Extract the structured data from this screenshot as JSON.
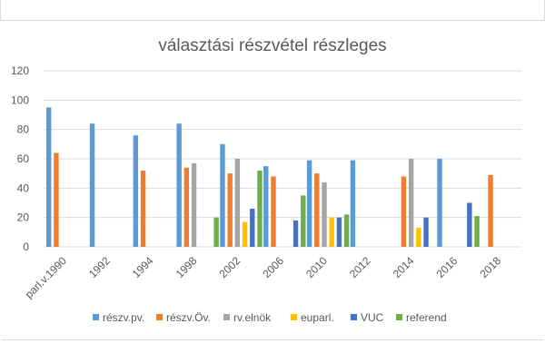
{
  "colors": {
    "grid": "#d9d9d9",
    "axis_text": "#595959",
    "title": "#595959"
  },
  "chart_data": {
    "type": "bar",
    "title": "választási részvétel részleges",
    "xlabel": "",
    "ylabel": "",
    "ylim": [
      0,
      120
    ],
    "yticks": [
      0,
      20,
      40,
      60,
      80,
      100,
      120
    ],
    "grid": true,
    "legend_position": "bottom",
    "categories": [
      "parl.v.1990",
      "1992",
      "1994",
      "1998",
      "2002",
      "2006",
      "2010",
      "2012",
      "2014",
      "2016",
      "2018"
    ],
    "series": [
      {
        "name": "részv.pv.",
        "color": "#5b9bd5",
        "values": [
          95,
          84,
          76,
          84,
          70,
          55,
          59,
          59,
          null,
          60,
          null
        ]
      },
      {
        "name": "részv.Öv.",
        "color": "#ed7d31",
        "values": [
          64,
          null,
          52,
          54,
          50,
          48,
          50,
          null,
          48,
          null,
          49
        ]
      },
      {
        "name": "rv.elnök",
        "color": "#a5a5a5",
        "values": [
          null,
          null,
          null,
          57,
          60,
          null,
          44,
          null,
          60,
          null,
          null
        ]
      },
      {
        "name": "euparl.",
        "color": "#ffc000",
        "values": [
          null,
          null,
          null,
          null,
          17,
          null,
          20,
          null,
          13,
          null,
          null
        ]
      },
      {
        "name": "VUC",
        "color": "#4472c4",
        "values": [
          null,
          null,
          null,
          null,
          26,
          18,
          20,
          null,
          20,
          30,
          null
        ]
      },
      {
        "name": "referend",
        "color": "#70ad47",
        "values": [
          null,
          null,
          null,
          20,
          52,
          35,
          22,
          null,
          null,
          21,
          null
        ]
      }
    ]
  }
}
